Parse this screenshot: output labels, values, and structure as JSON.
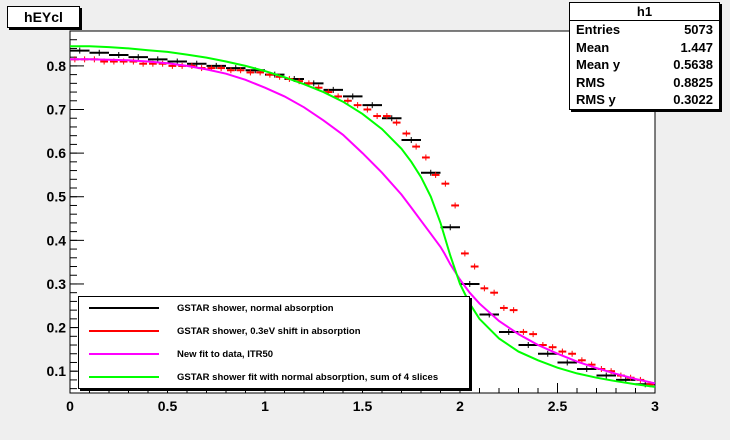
{
  "title": "hEYcl",
  "stats": {
    "name": "h1",
    "rows": [
      {
        "label": "Entries",
        "value": "5073"
      },
      {
        "label": "Mean",
        "value": "1.447"
      },
      {
        "label": "Mean y",
        "value": "0.5638"
      },
      {
        "label": "RMS",
        "value": "0.8825"
      },
      {
        "label": "RMS y",
        "value": "0.3022"
      }
    ]
  },
  "legend": [
    {
      "label": "GSTAR shower, normal absorption",
      "color": "#000000"
    },
    {
      "label": "GSTAR shower, 0.3eV shift in absorption",
      "color": "#ff0000"
    },
    {
      "label": "New fit to data, ITR50",
      "color": "#ff00ff"
    },
    {
      "label": "GSTAR shower fit with normal absorption, sum of 4 slices",
      "color": "#00ff00"
    }
  ],
  "chart_data": {
    "type": "line",
    "xlim": [
      0,
      3
    ],
    "ylim": [
      0.05,
      0.88
    ],
    "xticks": [
      "0",
      "0.5",
      "1",
      "1.5",
      "2",
      "2.5",
      "3"
    ],
    "yticks": [
      "0.1",
      "0.2",
      "0.3",
      "0.4",
      "0.5",
      "0.6",
      "0.7",
      "0.8"
    ],
    "series": [
      {
        "name": "GSTAR shower, normal absorption",
        "color": "#000000",
        "style": "steps",
        "x": [
          0.05,
          0.15,
          0.25,
          0.35,
          0.45,
          0.55,
          0.65,
          0.75,
          0.85,
          0.95,
          1.05,
          1.15,
          1.25,
          1.35,
          1.45,
          1.55,
          1.65,
          1.75,
          1.85,
          1.95,
          2.05,
          2.15,
          2.25,
          2.35,
          2.45,
          2.55,
          2.65,
          2.75,
          2.85,
          2.95
        ],
        "y": [
          0.835,
          0.83,
          0.825,
          0.82,
          0.815,
          0.81,
          0.805,
          0.8,
          0.795,
          0.79,
          0.78,
          0.77,
          0.76,
          0.745,
          0.73,
          0.71,
          0.68,
          0.63,
          0.555,
          0.43,
          0.3,
          0.23,
          0.19,
          0.16,
          0.14,
          0.12,
          0.105,
          0.09,
          0.08,
          0.07
        ]
      },
      {
        "name": "GSTAR shower, 0.3eV shift in absorption",
        "color": "#ff0000",
        "style": "points",
        "x": [
          0.025,
          0.075,
          0.125,
          0.175,
          0.225,
          0.275,
          0.325,
          0.375,
          0.425,
          0.475,
          0.525,
          0.575,
          0.625,
          0.675,
          0.725,
          0.775,
          0.825,
          0.875,
          0.925,
          0.975,
          1.025,
          1.075,
          1.125,
          1.175,
          1.225,
          1.275,
          1.325,
          1.375,
          1.425,
          1.475,
          1.525,
          1.575,
          1.625,
          1.675,
          1.725,
          1.775,
          1.825,
          1.875,
          1.925,
          1.975,
          2.025,
          2.075,
          2.125,
          2.175,
          2.225,
          2.275,
          2.325,
          2.375,
          2.425,
          2.475,
          2.525,
          2.575,
          2.625,
          2.675,
          2.725,
          2.775,
          2.825,
          2.875,
          2.925,
          2.975
        ],
        "y": [
          0.815,
          0.815,
          0.815,
          0.81,
          0.81,
          0.81,
          0.81,
          0.805,
          0.805,
          0.805,
          0.8,
          0.8,
          0.8,
          0.795,
          0.795,
          0.795,
          0.79,
          0.79,
          0.785,
          0.785,
          0.78,
          0.775,
          0.77,
          0.765,
          0.76,
          0.75,
          0.74,
          0.73,
          0.72,
          0.71,
          0.7,
          0.685,
          0.685,
          0.67,
          0.645,
          0.615,
          0.59,
          0.55,
          0.53,
          0.48,
          0.37,
          0.34,
          0.29,
          0.28,
          0.245,
          0.24,
          0.19,
          0.185,
          0.16,
          0.155,
          0.145,
          0.14,
          0.125,
          0.115,
          0.105,
          0.1,
          0.09,
          0.085,
          0.08,
          0.07
        ]
      },
      {
        "name": "New fit to data, ITR50",
        "color": "#ff00ff",
        "style": "curve",
        "x": [
          0,
          0.1,
          0.2,
          0.3,
          0.4,
          0.5,
          0.6,
          0.7,
          0.8,
          0.9,
          1.0,
          1.1,
          1.2,
          1.3,
          1.4,
          1.5,
          1.6,
          1.7,
          1.75,
          1.8,
          1.85,
          1.9,
          1.92,
          1.95,
          2.0,
          2.05,
          2.1,
          2.2,
          2.3,
          2.4,
          2.5,
          2.6,
          2.7,
          2.8,
          2.9,
          3.0
        ],
        "y": [
          0.815,
          0.815,
          0.814,
          0.813,
          0.81,
          0.806,
          0.8,
          0.792,
          0.782,
          0.768,
          0.75,
          0.73,
          0.705,
          0.675,
          0.642,
          0.6,
          0.555,
          0.505,
          0.475,
          0.445,
          0.415,
          0.385,
          0.37,
          0.345,
          0.31,
          0.28,
          0.255,
          0.215,
          0.185,
          0.16,
          0.14,
          0.122,
          0.107,
          0.094,
          0.082,
          0.072
        ]
      },
      {
        "name": "GSTAR shower fit with normal absorption, sum of 4 slices",
        "color": "#00ff00",
        "style": "curve",
        "x": [
          0,
          0.1,
          0.2,
          0.3,
          0.4,
          0.5,
          0.6,
          0.7,
          0.8,
          0.9,
          1.0,
          1.1,
          1.2,
          1.3,
          1.4,
          1.5,
          1.6,
          1.7,
          1.75,
          1.8,
          1.85,
          1.9,
          1.95,
          2.0,
          2.05,
          2.1,
          2.2,
          2.3,
          2.4,
          2.5,
          2.6,
          2.7,
          2.8,
          2.9,
          3.0
        ],
        "y": [
          0.845,
          0.845,
          0.843,
          0.84,
          0.836,
          0.832,
          0.826,
          0.819,
          0.81,
          0.8,
          0.788,
          0.774,
          0.758,
          0.74,
          0.718,
          0.69,
          0.655,
          0.61,
          0.58,
          0.545,
          0.5,
          0.44,
          0.365,
          0.3,
          0.255,
          0.22,
          0.175,
          0.145,
          0.125,
          0.108,
          0.095,
          0.085,
          0.077,
          0.07,
          0.064
        ]
      }
    ]
  }
}
